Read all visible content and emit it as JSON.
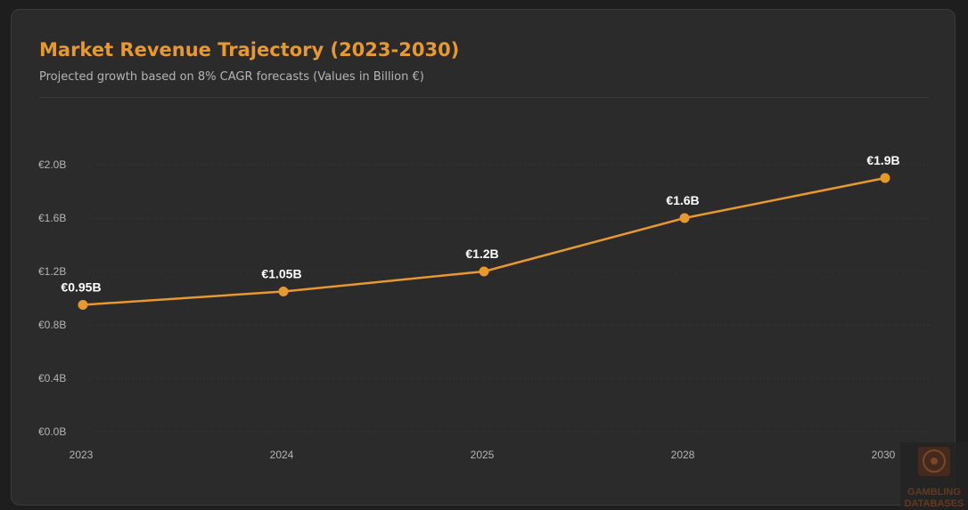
{
  "header": {
    "title": "Market Revenue Trajectory (2023-2030)",
    "subtitle": "Projected growth based on 8% CAGR forecasts (Values in Billion €)"
  },
  "colors": {
    "accent": "#e8992e",
    "grid": "#3a3a3a",
    "tick_text": "#b5b5b5",
    "label_text": "#ffffff"
  },
  "chart_data": {
    "type": "line",
    "categories": [
      "2023",
      "2024",
      "2025",
      "2028",
      "2030"
    ],
    "series": [
      {
        "values": [
          0.95,
          1.05,
          1.2,
          1.6,
          1.9
        ],
        "labels": [
          "€0.95B",
          "€1.05B",
          "€1.2B",
          "€1.6B",
          "€1.9B"
        ]
      }
    ],
    "yticks": [
      0,
      0.4,
      0.8,
      1.2,
      1.6,
      2.0
    ],
    "ytick_labels": [
      "€0.0B",
      "€0.4B",
      "€0.8B",
      "€1.2B",
      "€1.6B",
      "€2.0B"
    ],
    "ylim": [
      0,
      2.0
    ],
    "grid": true,
    "legend": "none"
  },
  "watermark": {
    "line1": "GAMBLING",
    "line2": "DATABASES",
    "icon": "roulette-icon"
  }
}
